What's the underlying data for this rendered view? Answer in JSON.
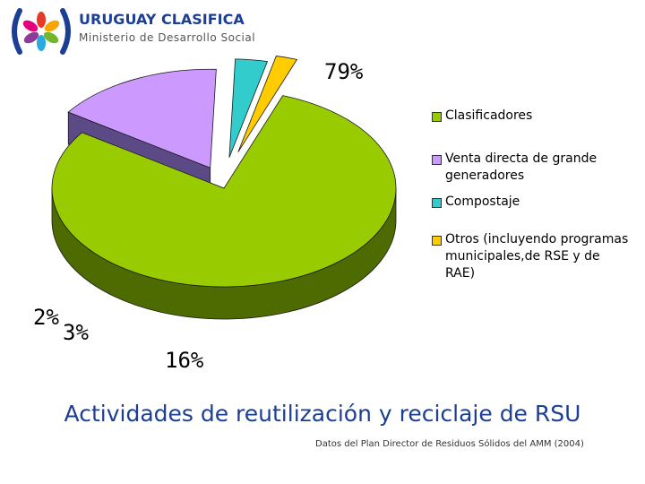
{
  "header": {
    "brand_title": "URUGUAY CLASIFICA",
    "brand_subtitle": "Ministerio de Desarrollo Social",
    "logo_colors": [
      "#1c3f94",
      "#e63a26",
      "#f7a600",
      "#74b72e",
      "#29aae1",
      "#8e3c97",
      "#e4007c"
    ]
  },
  "chart_data": {
    "type": "pie",
    "title": "Actividades de reutilización y reciclaje de RSU",
    "source": "Datos del Plan Director de Residuos Sólidos del AMM (2004)",
    "slices": [
      {
        "label": "Clasificadores",
        "value": 79,
        "value_label": "79%",
        "color": "#99cc00",
        "side": "#4d6b00"
      },
      {
        "label": "Venta directa de grande generadores",
        "value": 16,
        "value_label": "16%",
        "color": "#cc99ff",
        "side": "#5c4a87"
      },
      {
        "label": "Compostaje",
        "value": 3,
        "value_label": "3%",
        "color": "#33cccc",
        "side": "#156b6b"
      },
      {
        "label": "Otros (incluyendo programas municipales,de RSE y de RAE)",
        "value": 2,
        "value_label": "2%",
        "color": "#ffcc00",
        "side": "#806600"
      }
    ],
    "legend_placement": "right",
    "style": "3d-exploded"
  }
}
